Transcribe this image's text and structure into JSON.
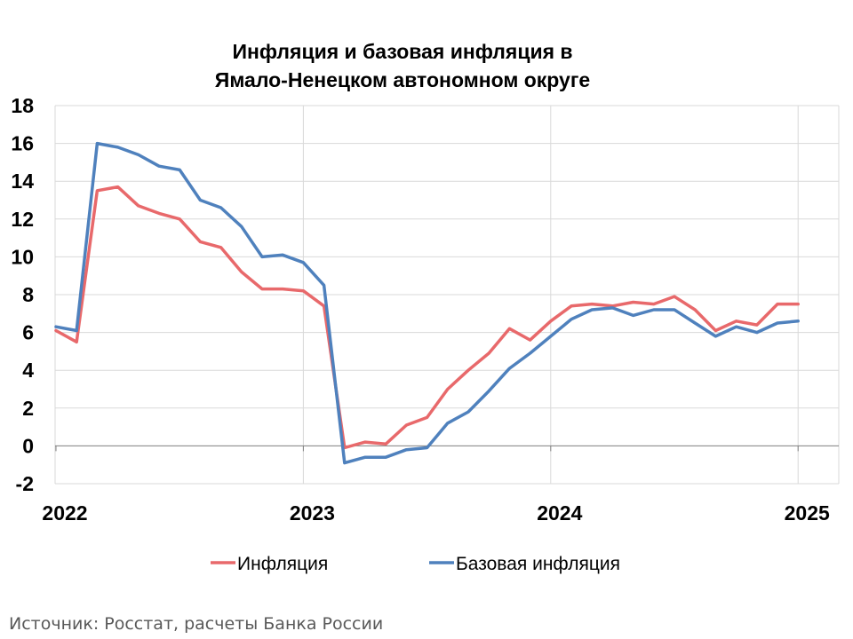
{
  "chart_data": {
    "type": "line",
    "title_lines": [
      "Инфляция и базовая инфляция в",
      "Ямало-Ненецком автономном округе"
    ],
    "xlabel": "",
    "ylabel": "",
    "ylim": [
      -2,
      18
    ],
    "yticks": [
      "18",
      "16",
      "14",
      "12",
      "10",
      "8",
      "6",
      "4",
      "2",
      "0",
      "-2"
    ],
    "xticks": [
      "2022",
      "2023",
      "2024",
      "2025"
    ],
    "grid": true,
    "legend_position": "bottom",
    "x_start": "2022-01",
    "x_step": "month",
    "series": [
      {
        "name": "Инфляция",
        "color": "#e8696b",
        "values": [
          6.1,
          5.5,
          13.5,
          13.7,
          12.7,
          12.3,
          12.0,
          10.8,
          10.5,
          9.2,
          8.3,
          8.3,
          8.2,
          7.4,
          -0.1,
          0.2,
          0.1,
          1.1,
          1.5,
          3.0,
          4.0,
          4.9,
          6.2,
          5.6,
          6.6,
          7.4,
          7.5,
          7.4,
          7.6,
          7.5,
          7.9,
          7.2,
          6.1,
          6.6,
          6.4,
          7.5,
          7.5
        ]
      },
      {
        "name": "Базовая инфляция",
        "color": "#4f81bd",
        "values": [
          6.3,
          6.1,
          16.0,
          15.8,
          15.4,
          14.8,
          14.6,
          13.0,
          12.6,
          11.6,
          10.0,
          10.1,
          9.7,
          8.5,
          -0.9,
          -0.6,
          -0.6,
          -0.2,
          -0.1,
          1.2,
          1.8,
          2.9,
          4.1,
          4.9,
          5.8,
          6.7,
          7.2,
          7.3,
          6.9,
          7.2,
          7.2,
          6.5,
          5.8,
          6.3,
          6.0,
          6.5,
          6.6
        ]
      }
    ]
  },
  "source": "Источник: Росстат, расчеты Банка России"
}
